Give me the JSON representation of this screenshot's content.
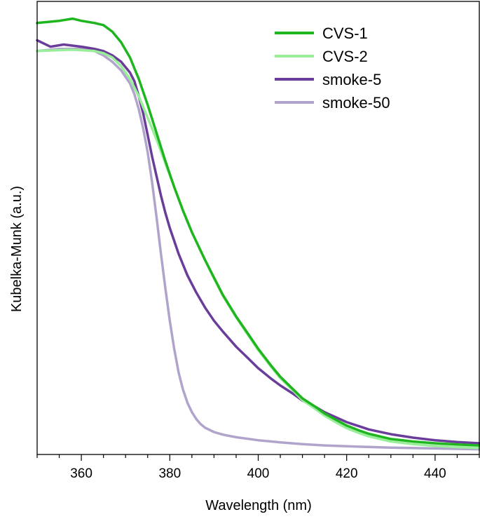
{
  "chart_data": {
    "type": "line",
    "title": "",
    "xlabel": "Wavelength (nm)",
    "ylabel": "Kubelka-Munk (a.u.)",
    "xlim": [
      350,
      450
    ],
    "ylim": [
      0,
      1.05
    ],
    "xticks": [
      360,
      380,
      400,
      420,
      440
    ],
    "yticks_shown": false,
    "grid": false,
    "legend_position": "top-right",
    "series": [
      {
        "name": "CVS-1",
        "color": "#1fb51f",
        "x": [
          350,
          355,
          358,
          360,
          363,
          365,
          367,
          369,
          371,
          373,
          375,
          377,
          379,
          381,
          383,
          385,
          388,
          390,
          392,
          395,
          398,
          400,
          403,
          405,
          408,
          410,
          413,
          415,
          418,
          420,
          423,
          425,
          430,
          435,
          440,
          445,
          450
        ],
        "y": [
          1.0,
          1.005,
          1.01,
          1.005,
          1.0,
          0.995,
          0.98,
          0.955,
          0.92,
          0.87,
          0.81,
          0.745,
          0.68,
          0.62,
          0.565,
          0.515,
          0.45,
          0.41,
          0.37,
          0.32,
          0.275,
          0.245,
          0.205,
          0.18,
          0.15,
          0.13,
          0.11,
          0.095,
          0.078,
          0.067,
          0.055,
          0.048,
          0.036,
          0.03,
          0.026,
          0.023,
          0.021
        ]
      },
      {
        "name": "CVS-2",
        "color": "#99ee99",
        "x": [
          350,
          355,
          358,
          360,
          363,
          365,
          367,
          369,
          371,
          373,
          375,
          377,
          379,
          381,
          383,
          385,
          388,
          390,
          392,
          395,
          398,
          400,
          403,
          405,
          408,
          410,
          413,
          415,
          418,
          420,
          423,
          425,
          430,
          435,
          440,
          445,
          450
        ],
        "y": [
          0.935,
          0.937,
          0.938,
          0.937,
          0.935,
          0.93,
          0.92,
          0.9,
          0.87,
          0.83,
          0.78,
          0.73,
          0.675,
          0.62,
          0.565,
          0.515,
          0.45,
          0.408,
          0.368,
          0.318,
          0.272,
          0.242,
          0.202,
          0.177,
          0.147,
          0.126,
          0.105,
          0.09,
          0.072,
          0.061,
          0.049,
          0.042,
          0.03,
          0.024,
          0.02,
          0.017,
          0.015
        ]
      },
      {
        "name": "smoke-5",
        "color": "#6a3d9a",
        "x": [
          350,
          353,
          356,
          360,
          363,
          365,
          367,
          369,
          371,
          372,
          373,
          374,
          375,
          376,
          377,
          378,
          379,
          380,
          382,
          384,
          386,
          388,
          390,
          392,
          395,
          398,
          400,
          403,
          405,
          408,
          410,
          413,
          415,
          420,
          425,
          430,
          435,
          440,
          445,
          450
        ],
        "y": [
          0.96,
          0.945,
          0.95,
          0.945,
          0.94,
          0.935,
          0.925,
          0.91,
          0.885,
          0.865,
          0.83,
          0.79,
          0.74,
          0.69,
          0.645,
          0.6,
          0.56,
          0.525,
          0.465,
          0.415,
          0.375,
          0.34,
          0.31,
          0.285,
          0.25,
          0.22,
          0.2,
          0.175,
          0.16,
          0.14,
          0.125,
          0.11,
          0.098,
          0.075,
          0.058,
          0.047,
          0.039,
          0.033,
          0.029,
          0.026
        ]
      },
      {
        "name": "smoke-50",
        "color": "#b0a4cc",
        "x": [
          350,
          355,
          360,
          363,
          365,
          367,
          369,
          371,
          372,
          373,
          374,
          375,
          376,
          377,
          378,
          379,
          380,
          381,
          382,
          383,
          384,
          385,
          386,
          387,
          388,
          390,
          392,
          395,
          400,
          405,
          410,
          415,
          420,
          430,
          440,
          450
        ],
        "y": [
          0.935,
          0.94,
          0.94,
          0.935,
          0.925,
          0.91,
          0.89,
          0.86,
          0.835,
          0.8,
          0.755,
          0.7,
          0.63,
          0.55,
          0.465,
          0.385,
          0.31,
          0.245,
          0.19,
          0.15,
          0.12,
          0.098,
          0.082,
          0.07,
          0.062,
          0.052,
          0.046,
          0.04,
          0.033,
          0.028,
          0.024,
          0.021,
          0.019,
          0.016,
          0.014,
          0.012
        ]
      }
    ]
  }
}
